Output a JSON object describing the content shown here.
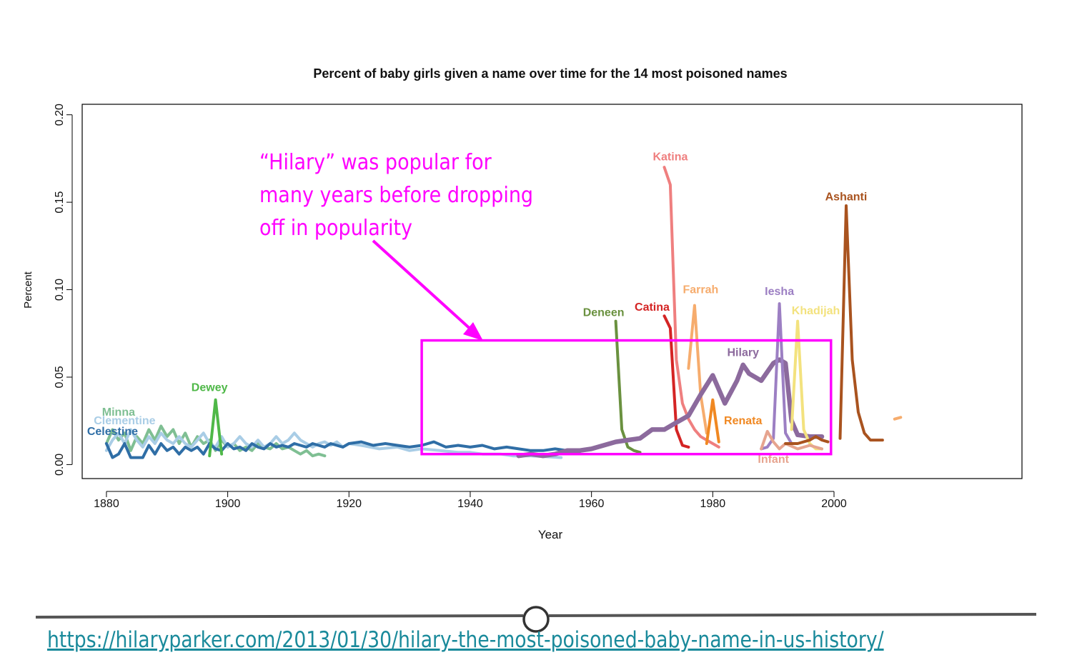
{
  "chart_data": {
    "type": "line",
    "title": "Percent of baby girls given a name over time for the 14 most poisoned names",
    "xlabel": "Year",
    "ylabel": "Percent",
    "xlim": [
      1876,
      2031
    ],
    "ylim": [
      -0.008,
      0.206
    ],
    "xticks": [
      1880,
      1900,
      1920,
      1940,
      1960,
      1980,
      2000
    ],
    "yticks": [
      0.0,
      0.05,
      0.1,
      0.15,
      0.2
    ],
    "ytick_labels": [
      "0.00",
      "0.05",
      "0.10",
      "0.15",
      "0.20"
    ],
    "series": [
      {
        "name": "Minna",
        "color": "#7fbf93",
        "label_xy": [
          1882,
          0.028
        ],
        "x": [
          1880,
          1881,
          1882,
          1883,
          1884,
          1885,
          1886,
          1887,
          1888,
          1889,
          1890,
          1891,
          1892,
          1893,
          1894,
          1895,
          1896,
          1897,
          1898,
          1899,
          1900,
          1901,
          1902,
          1903,
          1904,
          1905,
          1906,
          1907,
          1908,
          1909,
          1910,
          1911,
          1912,
          1913,
          1914,
          1915,
          1916
        ],
        "y": [
          0.012,
          0.02,
          0.014,
          0.018,
          0.008,
          0.016,
          0.012,
          0.02,
          0.014,
          0.022,
          0.016,
          0.02,
          0.012,
          0.018,
          0.01,
          0.016,
          0.012,
          0.014,
          0.008,
          0.014,
          0.01,
          0.012,
          0.008,
          0.01,
          0.008,
          0.012,
          0.01,
          0.009,
          0.012,
          0.009,
          0.01,
          0.008,
          0.006,
          0.008,
          0.005,
          0.006,
          0.005
        ]
      },
      {
        "name": "Clementine",
        "color": "#a9cde6",
        "label_xy": [
          1883,
          0.023
        ],
        "x": [
          1880,
          1881,
          1882,
          1883,
          1884,
          1885,
          1886,
          1887,
          1888,
          1889,
          1890,
          1891,
          1892,
          1893,
          1894,
          1895,
          1896,
          1897,
          1898,
          1899,
          1900,
          1901,
          1902,
          1903,
          1904,
          1905,
          1906,
          1907,
          1908,
          1909,
          1910,
          1911,
          1912,
          1913,
          1914,
          1915,
          1916,
          1917,
          1918,
          1919,
          1920,
          1922,
          1925,
          1928,
          1930,
          1932,
          1935,
          1938,
          1940,
          1942,
          1945,
          1947,
          1950,
          1955
        ],
        "y": [
          0.008,
          0.014,
          0.018,
          0.012,
          0.02,
          0.014,
          0.01,
          0.016,
          0.012,
          0.018,
          0.014,
          0.012,
          0.016,
          0.012,
          0.01,
          0.014,
          0.018,
          0.012,
          0.01,
          0.016,
          0.01,
          0.012,
          0.016,
          0.012,
          0.01,
          0.014,
          0.01,
          0.012,
          0.016,
          0.012,
          0.014,
          0.018,
          0.014,
          0.012,
          0.01,
          0.012,
          0.013,
          0.011,
          0.013,
          0.01,
          0.012,
          0.011,
          0.009,
          0.01,
          0.008,
          0.009,
          0.008,
          0.007,
          0.007,
          0.006,
          0.006,
          0.005,
          0.005,
          0.004
        ]
      },
      {
        "name": "Celestine",
        "color": "#2f6ea6",
        "label_xy": [
          1881,
          0.017
        ],
        "x": [
          1880,
          1881,
          1882,
          1883,
          1884,
          1885,
          1886,
          1887,
          1888,
          1889,
          1890,
          1891,
          1892,
          1893,
          1894,
          1895,
          1896,
          1897,
          1898,
          1899,
          1900,
          1901,
          1902,
          1903,
          1904,
          1905,
          1906,
          1907,
          1908,
          1909,
          1910,
          1911,
          1912,
          1913,
          1914,
          1915,
          1916,
          1917,
          1918,
          1919,
          1920,
          1922,
          1924,
          1926,
          1928,
          1930,
          1932,
          1934,
          1936,
          1938,
          1940,
          1942,
          1944,
          1946,
          1948,
          1950,
          1952,
          1954,
          1956,
          1958
        ],
        "y": [
          0.012,
          0.004,
          0.006,
          0.012,
          0.004,
          0.004,
          0.004,
          0.011,
          0.006,
          0.012,
          0.008,
          0.01,
          0.006,
          0.01,
          0.008,
          0.01,
          0.006,
          0.012,
          0.009,
          0.008,
          0.012,
          0.009,
          0.01,
          0.008,
          0.012,
          0.01,
          0.009,
          0.012,
          0.01,
          0.011,
          0.01,
          0.012,
          0.011,
          0.01,
          0.012,
          0.011,
          0.01,
          0.012,
          0.011,
          0.01,
          0.012,
          0.013,
          0.011,
          0.012,
          0.011,
          0.01,
          0.011,
          0.013,
          0.01,
          0.011,
          0.01,
          0.011,
          0.009,
          0.01,
          0.009,
          0.008,
          0.008,
          0.009,
          0.008,
          0.007
        ]
      },
      {
        "name": "Dewey",
        "color": "#4fb848",
        "label_xy": [
          1897,
          0.042
        ],
        "x": [
          1897,
          1898,
          1899
        ],
        "y": [
          0.005,
          0.037,
          0.006
        ]
      },
      {
        "name": "Deneen",
        "color": "#6a913f",
        "label_xy": [
          1962,
          0.085
        ],
        "x": [
          1964,
          1965,
          1966,
          1967,
          1968
        ],
        "y": [
          0.082,
          0.02,
          0.01,
          0.008,
          0.007
        ]
      },
      {
        "name": "Katina",
        "color": "#ef7f7f",
        "label_xy": [
          1973,
          0.174
        ],
        "x": [
          1972,
          1973,
          1974,
          1975,
          1976,
          1977,
          1978,
          1979,
          1980,
          1981
        ],
        "y": [
          0.17,
          0.16,
          0.06,
          0.035,
          0.026,
          0.02,
          0.016,
          0.014,
          0.012,
          0.01
        ]
      },
      {
        "name": "Catina",
        "color": "#d42424",
        "label_xy": [
          1970,
          0.088
        ],
        "x": [
          1972,
          1973,
          1974,
          1975,
          1976
        ],
        "y": [
          0.085,
          0.078,
          0.02,
          0.011,
          0.01
        ]
      },
      {
        "name": "Farrah",
        "color": "#f6ac6d",
        "label_xy": [
          1978,
          0.098
        ],
        "x": [
          1976,
          1977,
          1978,
          1979
        ],
        "y": [
          0.055,
          0.091,
          0.04,
          0.018
        ]
      },
      {
        "name": "Renata",
        "color": "#f08822",
        "label_xy": [
          1985,
          0.023
        ],
        "x": [
          1979,
          1980,
          1981
        ],
        "y": [
          0.012,
          0.037,
          0.013
        ]
      },
      {
        "name": "Hilary",
        "color": "#8c6a9d",
        "label_xy": [
          1985,
          0.062
        ],
        "x": [
          1948,
          1950,
          1952,
          1954,
          1956,
          1958,
          1960,
          1962,
          1964,
          1966,
          1968,
          1970,
          1972,
          1974,
          1976,
          1978,
          1980,
          1982,
          1984,
          1985,
          1986,
          1988,
          1990,
          1991,
          1992,
          1993,
          1994,
          1996,
          1998
        ],
        "y": [
          0.005,
          0.006,
          0.005,
          0.006,
          0.008,
          0.008,
          0.009,
          0.011,
          0.013,
          0.014,
          0.015,
          0.02,
          0.02,
          0.024,
          0.028,
          0.04,
          0.051,
          0.035,
          0.048,
          0.057,
          0.052,
          0.048,
          0.058,
          0.06,
          0.058,
          0.025,
          0.017,
          0.016,
          0.016
        ]
      },
      {
        "name": "Iesha",
        "color": "#9c7fc3",
        "label_xy": [
          1991,
          0.097
        ],
        "x": [
          1988,
          1989,
          1990,
          1991,
          1992,
          1993
        ],
        "y": [
          0.009,
          0.01,
          0.015,
          0.092,
          0.018,
          0.012
        ]
      },
      {
        "name": "Khadijah",
        "color": "#f3e27e",
        "label_xy": [
          1997,
          0.086
        ],
        "x": [
          1993,
          1994,
          1995,
          1996,
          1997,
          1998
        ],
        "y": [
          0.02,
          0.082,
          0.02,
          0.012,
          0.009,
          0.009
        ]
      },
      {
        "name": "Infant",
        "color": "#e6a48f",
        "label_xy": [
          1990,
          0.001
        ],
        "x": [
          1988,
          1989,
          1990,
          1991,
          1992,
          1994,
          1996,
          1998
        ],
        "y": [
          0.009,
          0.019,
          0.013,
          0.009,
          0.012,
          0.009,
          0.011,
          0.009
        ]
      },
      {
        "name": "Ashanti",
        "color": "#a9531f",
        "label_xy": [
          2002,
          0.151
        ],
        "x": [
          2001,
          2002,
          2003,
          2004,
          2005,
          2006,
          2007,
          2008,
          1992,
          1994,
          1996,
          1997,
          1998,
          1999
        ],
        "y": [
          0.015,
          0.148,
          0.06,
          0.03,
          0.018,
          0.014,
          0.014,
          0.014,
          0.012,
          0.012,
          0.014,
          0.016,
          0.014,
          0.013
        ],
        "segments": [
          [
            0,
            8
          ],
          [
            8,
            14
          ]
        ]
      }
    ],
    "extra_segment": {
      "color": "#f6ac6d",
      "x": [
        2010,
        2011
      ],
      "y": [
        0.026,
        0.027
      ]
    },
    "highlight_box": {
      "x0": 1932,
      "x1": 1999.5,
      "y0": 0.006,
      "y1": 0.071,
      "color": "#ff00ff"
    }
  },
  "annotation": {
    "lines": [
      "“Hilary” was popular for",
      "many years before dropping",
      "off in popularity"
    ],
    "color": "#ff00ff"
  },
  "footer": {
    "link_text": "https://hilaryparker.com/2013/01/30/hilary-the-most-poisoned-baby-name-in-us-history/"
  }
}
